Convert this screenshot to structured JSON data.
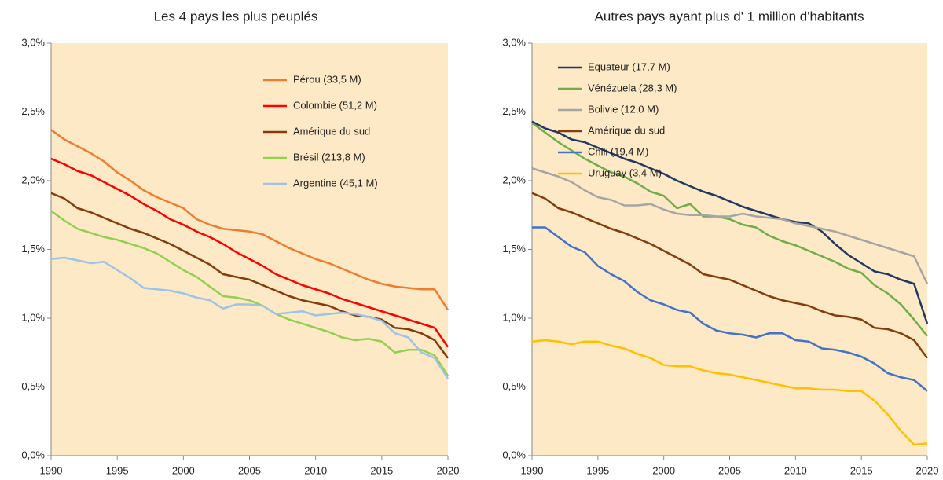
{
  "chart_data": [
    {
      "type": "line",
      "title": "Les 4 pays les plus peuplés",
      "legend": "upper right",
      "x": [
        1990,
        1991,
        1992,
        1993,
        1994,
        1995,
        1996,
        1997,
        1998,
        1999,
        2000,
        2001,
        2002,
        2003,
        2004,
        2005,
        2006,
        2007,
        2008,
        2009,
        2010,
        2011,
        2012,
        2013,
        2014,
        2015,
        2016,
        2017,
        2018,
        2019,
        2020
      ],
      "xlim": [
        1990,
        2020
      ],
      "xticks": [
        1990,
        1995,
        2000,
        2005,
        2010,
        2015,
        2020
      ],
      "ylim": [
        0,
        3.0
      ],
      "yticks": [
        {
          "value": 0,
          "label": "0,0%"
        },
        {
          "value": 0.5,
          "label": "0,5%"
        },
        {
          "value": 1.0,
          "label": "1,0%"
        },
        {
          "value": 1.5,
          "label": "1,5%"
        },
        {
          "value": 2.0,
          "label": "2,0%"
        },
        {
          "value": 2.5,
          "label": "2,5%"
        },
        {
          "value": 3.0,
          "label": "3,0%"
        }
      ],
      "series": [
        {
          "name": "Pérou (33,5 M)",
          "color": "#ed7d31",
          "values": [
            2.37,
            2.3,
            2.25,
            2.2,
            2.14,
            2.06,
            2.0,
            1.93,
            1.88,
            1.84,
            1.8,
            1.72,
            1.68,
            1.65,
            1.64,
            1.63,
            1.61,
            1.56,
            1.51,
            1.47,
            1.43,
            1.4,
            1.36,
            1.32,
            1.28,
            1.25,
            1.23,
            1.22,
            1.21,
            1.21,
            1.06
          ]
        },
        {
          "name": "Colombie (51,2 M)",
          "color": "#ff0000",
          "values": [
            2.16,
            2.12,
            2.07,
            2.04,
            1.99,
            1.94,
            1.89,
            1.83,
            1.78,
            1.72,
            1.68,
            1.63,
            1.59,
            1.54,
            1.48,
            1.43,
            1.38,
            1.32,
            1.28,
            1.24,
            1.21,
            1.18,
            1.14,
            1.11,
            1.08,
            1.05,
            1.02,
            0.99,
            0.96,
            0.93,
            0.79
          ]
        },
        {
          "name": "Amérique du sud",
          "color": "#843c0c",
          "values": [
            1.91,
            1.87,
            1.8,
            1.77,
            1.73,
            1.69,
            1.65,
            1.62,
            1.58,
            1.54,
            1.49,
            1.44,
            1.39,
            1.32,
            1.3,
            1.28,
            1.24,
            1.2,
            1.16,
            1.13,
            1.11,
            1.09,
            1.05,
            1.02,
            1.01,
            0.99,
            0.93,
            0.92,
            0.89,
            0.84,
            0.71
          ]
        },
        {
          "name": "Brésil (213,8 M)",
          "color": "#92d050",
          "values": [
            1.78,
            1.71,
            1.65,
            1.62,
            1.59,
            1.57,
            1.54,
            1.51,
            1.47,
            1.41,
            1.35,
            1.3,
            1.23,
            1.16,
            1.15,
            1.13,
            1.09,
            1.03,
            0.99,
            0.96,
            0.93,
            0.9,
            0.86,
            0.84,
            0.85,
            0.83,
            0.75,
            0.77,
            0.77,
            0.73,
            0.58
          ]
        },
        {
          "name": "Argentine (45,1 M)",
          "color": "#9dc3e6",
          "values": [
            1.43,
            1.44,
            1.42,
            1.4,
            1.41,
            1.35,
            1.29,
            1.22,
            1.21,
            1.2,
            1.18,
            1.15,
            1.13,
            1.07,
            1.1,
            1.1,
            1.09,
            1.03,
            1.04,
            1.05,
            1.02,
            1.03,
            1.04,
            1.03,
            1.01,
            0.98,
            0.89,
            0.86,
            0.75,
            0.71,
            0.56
          ]
        }
      ]
    },
    {
      "type": "line",
      "title": "Autres pays ayant plus d' 1 million d'habitants",
      "legend": "upper right",
      "x": [
        1990,
        1991,
        1992,
        1993,
        1994,
        1995,
        1996,
        1997,
        1998,
        1999,
        2000,
        2001,
        2002,
        2003,
        2004,
        2005,
        2006,
        2007,
        2008,
        2009,
        2010,
        2011,
        2012,
        2013,
        2014,
        2015,
        2016,
        2017,
        2018,
        2019,
        2020
      ],
      "xlim": [
        1990,
        2020
      ],
      "xticks": [
        1990,
        1995,
        2000,
        2005,
        2010,
        2015,
        2020
      ],
      "ylim": [
        0,
        3.0
      ],
      "yticks": [
        {
          "value": 0,
          "label": "0,0%"
        },
        {
          "value": 0.5,
          "label": "0,5%"
        },
        {
          "value": 1.0,
          "label": "1,0%"
        },
        {
          "value": 1.5,
          "label": "1,5%"
        },
        {
          "value": 2.0,
          "label": "2,0%"
        },
        {
          "value": 2.5,
          "label": "2,5%"
        },
        {
          "value": 3.0,
          "label": "3,0%"
        }
      ],
      "series": [
        {
          "name": "Equateur (17,7 M)",
          "color": "#203864",
          "values": [
            2.43,
            2.38,
            2.35,
            2.3,
            2.28,
            2.24,
            2.2,
            2.16,
            2.13,
            2.09,
            2.05,
            2.0,
            1.96,
            1.92,
            1.89,
            1.85,
            1.81,
            1.78,
            1.75,
            1.72,
            1.7,
            1.69,
            1.63,
            1.54,
            1.46,
            1.4,
            1.34,
            1.32,
            1.28,
            1.25,
            0.96
          ]
        },
        {
          "name": "Vénézuela (28,3 M)",
          "color": "#70ad47",
          "values": [
            2.42,
            2.35,
            2.28,
            2.22,
            2.16,
            2.11,
            2.06,
            2.03,
            1.98,
            1.92,
            1.89,
            1.8,
            1.83,
            1.74,
            1.74,
            1.72,
            1.68,
            1.66,
            1.6,
            1.56,
            1.53,
            1.49,
            1.45,
            1.41,
            1.36,
            1.33,
            1.24,
            1.18,
            1.1,
            0.99,
            0.87
          ]
        },
        {
          "name": "Bolivie (12,0 M)",
          "color": "#a5a5a5",
          "values": [
            2.09,
            2.06,
            2.03,
            1.99,
            1.93,
            1.88,
            1.86,
            1.82,
            1.82,
            1.83,
            1.79,
            1.76,
            1.75,
            1.75,
            1.74,
            1.74,
            1.76,
            1.74,
            1.73,
            1.72,
            1.69,
            1.67,
            1.65,
            1.63,
            1.6,
            1.57,
            1.54,
            1.51,
            1.48,
            1.45,
            1.25
          ]
        },
        {
          "name": "Amérique du sud",
          "color": "#843c0c",
          "values": [
            1.91,
            1.87,
            1.8,
            1.77,
            1.73,
            1.69,
            1.65,
            1.62,
            1.58,
            1.54,
            1.49,
            1.44,
            1.39,
            1.32,
            1.3,
            1.28,
            1.24,
            1.2,
            1.16,
            1.13,
            1.11,
            1.09,
            1.05,
            1.02,
            1.01,
            0.99,
            0.93,
            0.92,
            0.89,
            0.84,
            0.71
          ]
        },
        {
          "name": "Chili (19,4 M)",
          "color": "#4472c4",
          "values": [
            1.66,
            1.66,
            1.59,
            1.52,
            1.48,
            1.38,
            1.32,
            1.27,
            1.19,
            1.13,
            1.1,
            1.06,
            1.04,
            0.96,
            0.91,
            0.89,
            0.88,
            0.86,
            0.89,
            0.89,
            0.84,
            0.83,
            0.78,
            0.77,
            0.75,
            0.72,
            0.67,
            0.6,
            0.57,
            0.55,
            0.47
          ]
        },
        {
          "name": "Uruguay (3,4 M)",
          "color": "#ffc000",
          "values": [
            0.83,
            0.84,
            0.83,
            0.81,
            0.83,
            0.83,
            0.8,
            0.78,
            0.74,
            0.71,
            0.66,
            0.65,
            0.65,
            0.62,
            0.6,
            0.59,
            0.57,
            0.55,
            0.53,
            0.51,
            0.49,
            0.49,
            0.48,
            0.48,
            0.47,
            0.47,
            0.4,
            0.3,
            0.18,
            0.08,
            0.09
          ]
        }
      ]
    }
  ]
}
